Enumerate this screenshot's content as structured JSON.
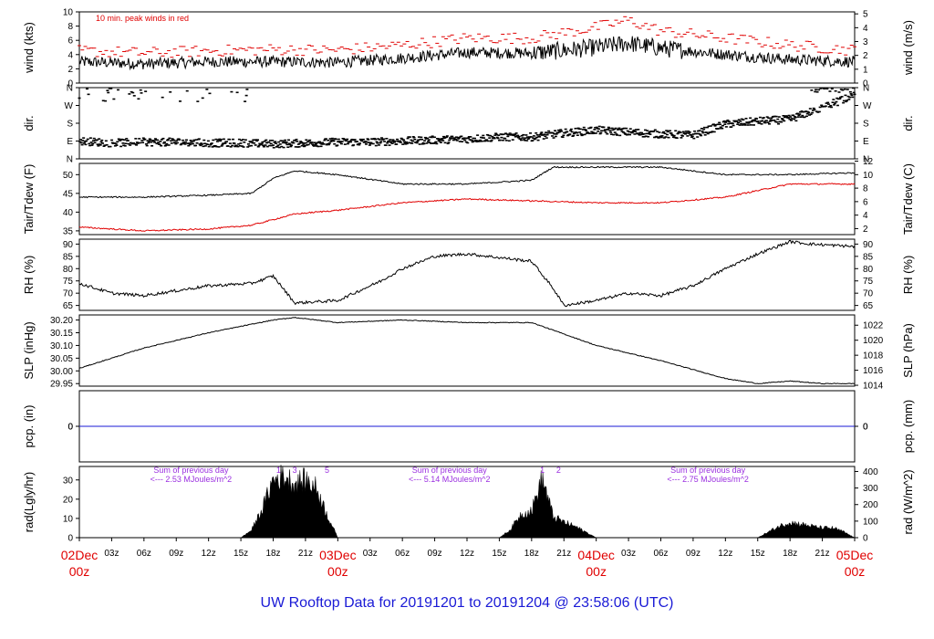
{
  "figure": {
    "footer_title": "UW Rooftop Data for 20191201  to  20191204 @ 23:58:06  (UTC)",
    "time_axis": {
      "major_labels": [
        {
          "day": "02Dec",
          "hour": "00z",
          "t": 0
        },
        {
          "day": "03Dec",
          "hour": "00z",
          "t": 24
        },
        {
          "day": "04Dec",
          "hour": "00z",
          "t": 48
        },
        {
          "day": "05Dec",
          "hour": "00z",
          "t": 72
        }
      ],
      "minor_labels": [
        "03z",
        "06z",
        "09z",
        "12z",
        "15z",
        "18z",
        "21z"
      ]
    },
    "colors": {
      "primary": "#000000",
      "dew": "#e00000",
      "peak": "#e00000",
      "precip": "#1a1ad6",
      "annotation": "#9b30e0",
      "footer": "#1a1ad6",
      "major": "#e00000"
    }
  },
  "chart_data": [
    {
      "id": "wind",
      "type": "line",
      "ylabel_left": "wind (kts)",
      "ylabel_right": "wind (m/s)",
      "ylim": [
        0,
        10
      ],
      "left_ticks": [
        0,
        2,
        4,
        6,
        8,
        10
      ],
      "right_ticks": [
        0,
        1,
        2,
        3,
        4,
        5
      ],
      "annotation": "10 min. peak winds in red",
      "series": [
        {
          "name": "wind speed",
          "x": [
            0,
            6,
            12,
            18,
            24,
            30,
            36,
            42,
            48,
            51,
            54,
            60,
            66,
            72
          ],
          "values": [
            3.0,
            2.7,
            3.0,
            3.0,
            2.9,
            3.5,
            4.3,
            4.2,
            5.0,
            5.6,
            4.9,
            4.0,
            3.3,
            3.0
          ]
        },
        {
          "name": "10 min. peak winds",
          "x": [
            0,
            6,
            12,
            18,
            24,
            30,
            36,
            42,
            48,
            51,
            54,
            60,
            66,
            72
          ],
          "values": [
            4.2,
            3.9,
            4.2,
            4.4,
            4.3,
            5.0,
            6.0,
            6.0,
            7.5,
            8.5,
            7.0,
            6.0,
            5.0,
            4.3
          ]
        }
      ]
    },
    {
      "id": "dir",
      "type": "scatter",
      "ylabel_left": "dir.",
      "ylabel_right": "dir.",
      "y_categories": [
        "N",
        "E",
        "S",
        "W",
        "N"
      ],
      "ylim": [
        0,
        360
      ],
      "series": [
        {
          "name": "wind direction (deg)",
          "x": [
            0,
            3,
            6,
            9,
            12,
            15,
            18,
            21,
            24,
            27,
            30,
            33,
            36,
            39,
            42,
            45,
            48,
            51,
            54,
            57,
            60,
            63,
            66,
            69,
            72
          ],
          "values": [
            90,
            80,
            85,
            85,
            80,
            80,
            75,
            80,
            85,
            85,
            90,
            95,
            100,
            110,
            110,
            130,
            145,
            135,
            125,
            120,
            175,
            190,
            200,
            260,
            320
          ]
        }
      ]
    },
    {
      "id": "temp",
      "type": "line",
      "ylabel_left": "Tair/Tdew (F)",
      "ylabel_right": "Tair/Tdew (C)",
      "ylim": [
        34,
        53
      ],
      "left_ticks": [
        35,
        40,
        45,
        50
      ],
      "right_ticks": [
        2,
        4,
        6,
        8,
        10,
        12
      ],
      "series": [
        {
          "name": "Tair",
          "x": [
            0,
            6,
            12,
            16,
            18,
            20,
            24,
            30,
            36,
            42,
            44,
            48,
            54,
            60,
            66,
            72
          ],
          "values": [
            44,
            44,
            44.5,
            45,
            49,
            51,
            50,
            47.5,
            47.5,
            48.5,
            52,
            52,
            52,
            50,
            50,
            50.5
          ]
        },
        {
          "name": "Tdew",
          "x": [
            0,
            6,
            12,
            16,
            18,
            20,
            24,
            30,
            36,
            42,
            48,
            54,
            60,
            66,
            72
          ],
          "values": [
            36,
            35,
            35.5,
            36.5,
            38,
            39.5,
            40.5,
            42.5,
            43.5,
            43,
            42.5,
            42.5,
            44,
            47.5,
            47.5
          ]
        }
      ]
    },
    {
      "id": "rh",
      "type": "line",
      "ylabel_left": "RH (%)",
      "ylabel_right": "RH (%)",
      "ylim": [
        63,
        92
      ],
      "left_ticks": [
        65,
        70,
        75,
        80,
        85,
        90
      ],
      "right_ticks": [
        65,
        70,
        75,
        80,
        85,
        90
      ],
      "series": [
        {
          "name": "RH",
          "x": [
            0,
            3,
            6,
            12,
            16,
            18,
            20,
            24,
            28,
            30,
            33,
            36,
            40,
            42,
            44,
            45,
            48,
            51,
            54,
            57,
            60,
            63,
            66,
            68,
            72
          ],
          "values": [
            74,
            70,
            69,
            73,
            74,
            77,
            66,
            67,
            75,
            80,
            85,
            86,
            84,
            83,
            72,
            65,
            67,
            70,
            69,
            73,
            80,
            86,
            91,
            90,
            89
          ]
        }
      ]
    },
    {
      "id": "slp",
      "type": "line",
      "ylabel_left": "SLP (inHg)",
      "ylabel_right": "SLP (hPa)",
      "ylim": [
        29.94,
        30.22
      ],
      "left_ticks": [
        29.95,
        30.0,
        30.05,
        30.1,
        30.15,
        30.2
      ],
      "right_ticks": [
        1014,
        1016,
        1018,
        1020,
        1022
      ],
      "series": [
        {
          "name": "SLP",
          "x": [
            0,
            6,
            12,
            18,
            20,
            24,
            30,
            36,
            42,
            48,
            54,
            60,
            63,
            66,
            69,
            72
          ],
          "values": [
            30.01,
            30.09,
            30.15,
            30.2,
            30.21,
            30.19,
            30.2,
            30.19,
            30.19,
            30.1,
            30.04,
            29.97,
            29.95,
            29.96,
            29.95,
            29.95
          ]
        }
      ]
    },
    {
      "id": "pcp",
      "type": "line",
      "ylabel_left": "pcp. (in)",
      "ylabel_right": "pcp. (mm)",
      "left_ticks": [
        0
      ],
      "right_ticks": [
        0
      ],
      "series": [
        {
          "name": "precipitation",
          "x": [
            0,
            72
          ],
          "values": [
            0,
            0
          ]
        }
      ]
    },
    {
      "id": "rad",
      "type": "area",
      "ylabel_left": "rad(Lgly/hr)",
      "ylabel_right": "rad (W/m^2)",
      "ylim": [
        0,
        37
      ],
      "left_ticks": [
        0,
        10,
        20,
        30
      ],
      "right_ticks": [
        0,
        100,
        200,
        300,
        400
      ],
      "annotations": [
        {
          "line1": "Sum of previous day",
          "line2": "<--- 2.53 MJoules/m^2",
          "t": 8
        },
        {
          "line1": "Sum of previous day",
          "line2": "<--- 5.14 MJoules/m^2",
          "t": 32
        },
        {
          "line1": "Sum of previous day",
          "line2": "<--- 2.75 MJoules/m^2",
          "t": 56
        }
      ],
      "peak_labels": [
        {
          "text": "1",
          "t": 18.5
        },
        {
          "text": "3",
          "t": 20.0
        },
        {
          "text": "5",
          "t": 23.0
        },
        {
          "text": "1",
          "t": 43.0
        },
        {
          "text": "2",
          "t": 44.5
        }
      ],
      "series": [
        {
          "name": "solar radiation",
          "x": [
            0,
            15,
            16,
            17,
            18,
            19,
            20,
            21,
            22,
            23,
            24,
            39,
            40,
            41,
            42,
            43,
            44,
            45,
            46,
            47,
            48,
            63,
            64,
            65,
            66,
            67,
            68,
            69,
            70,
            71,
            72
          ],
          "values": [
            0,
            0,
            4,
            15,
            30,
            32,
            28,
            30,
            26,
            12,
            0,
            0,
            4,
            12,
            14,
            31,
            11,
            8,
            6,
            3,
            0,
            0,
            3,
            6,
            8,
            7,
            6,
            5,
            5,
            3,
            0
          ]
        }
      ]
    }
  ]
}
